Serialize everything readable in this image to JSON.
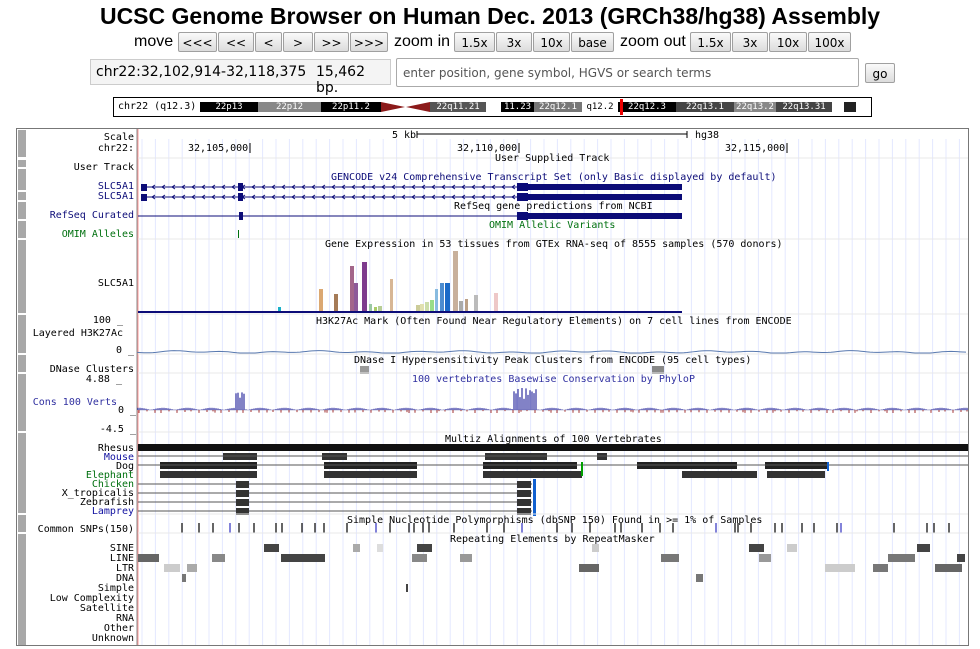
{
  "title": "UCSC Genome Browser on Human Dec. 2013 (GRCh38/hg38) Assembly",
  "nav": {
    "move_label": "move",
    "move_buttons": [
      "<<<",
      "<<",
      "<",
      ">",
      ">>",
      ">>>"
    ],
    "zoom_in_label": "zoom in",
    "zoom_in_buttons": [
      "1.5x",
      "3x",
      "10x",
      "base"
    ],
    "zoom_out_label": "zoom out",
    "zoom_out_buttons": [
      "1.5x",
      "3x",
      "10x",
      "100x"
    ]
  },
  "position": {
    "range": "chr22:32,102,914-32,118,375",
    "size": "15,462 bp."
  },
  "search": {
    "placeholder": "enter position, gene symbol, HGVS or search terms",
    "go_label": "go"
  },
  "ideogram": {
    "label": "chr22 (q12.3)",
    "bands": [
      "22p13",
      "22p12",
      "22p11.2",
      "22q11.21",
      "11.23",
      "22q12.1",
      "q12.2",
      "22q12.3",
      "22q13.1",
      "22q13.2",
      "22q13.31"
    ]
  },
  "scale": {
    "label": "Scale",
    "bar_label": "5 kb",
    "assembly": "hg38"
  },
  "ruler": {
    "label": "chr22:",
    "ticks": [
      "32,105,000",
      "32,110,000",
      "32,115,000"
    ]
  },
  "tracks": {
    "user": {
      "label": "User Track",
      "title": "User Supplied Track"
    },
    "gencode": {
      "title": "GENCODE v24 Comprehensive Transcript Set (only Basic displayed by default)",
      "rows": [
        "SLC5A1",
        "SLC5A1"
      ]
    },
    "refseq": {
      "label": "RefSeq Curated",
      "title": "RefSeq gene predictions from NCBI"
    },
    "omim": {
      "label": "OMIM Alleles",
      "title": "OMIM Allelic Variants"
    },
    "gtex": {
      "title": "Gene Expression in 53 tissues from GTEx RNA-seq of 8555 samples (570 donors)",
      "label": "SLC5A1"
    },
    "h3k27ac": {
      "max": "100 _",
      "label": "Layered H3K27Ac",
      "min": "0 _",
      "title": "H3K27Ac Mark (Often Found Near Regulatory Elements) on 7 cell lines from ENCODE"
    },
    "dnase": {
      "label": "DNase Clusters",
      "title": "DNase I Hypersensitivity Peak Clusters from ENCODE (95 cell types)"
    },
    "cons": {
      "max": "4.88 _",
      "label": "Cons 100 Verts",
      "zero": "0 _",
      "min": "-4.5 _",
      "title": "100 vertebrates Basewise Conservation by PhyloP"
    },
    "multiz": {
      "title": "Multiz Alignments of 100 Vertebrates",
      "species": [
        "Rhesus",
        "Mouse",
        "Dog",
        "Elephant",
        "Chicken",
        "X_tropicalis",
        "Zebrafish",
        "Lamprey"
      ]
    },
    "snps": {
      "label": "Common SNPs(150)",
      "title": "Simple Nucleotide Polymorphisms (dbSNP 150) Found in >= 1% of Samples"
    },
    "rmsk": {
      "title": "Repeating Elements by RepeatMasker",
      "classes": [
        "SINE",
        "LINE",
        "LTR",
        "DNA",
        "Simple",
        "Low Complexity",
        "Satellite",
        "RNA",
        "Other",
        "Unknown"
      ]
    }
  },
  "colors": {
    "gene": "#0c0c78",
    "species_blue": "#1010a0",
    "species_green": "#00700f",
    "cons": "#3030a0"
  }
}
